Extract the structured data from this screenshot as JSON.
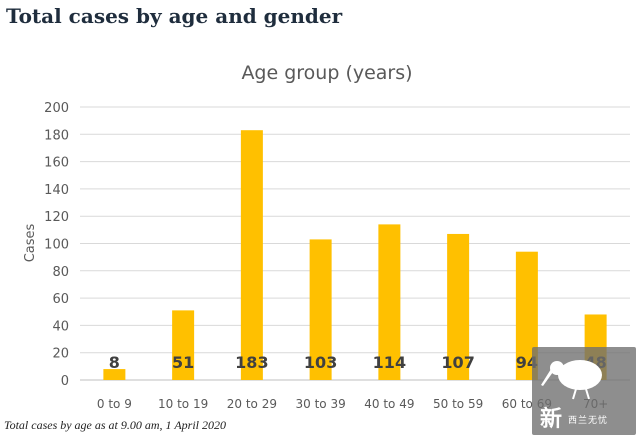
{
  "page": {
    "title": "Total cases by age and gender",
    "caption": "Total cases by age as at 9.00 am, 1 April 2020"
  },
  "watermark": {
    "char": "新",
    "text": "西兰无忧",
    "icon": "kiwi-bird-icon"
  },
  "colors": {
    "bar": "#ffc000",
    "grid": "#d9d9d9",
    "axis_text": "#595959",
    "data_label": "#404040"
  },
  "chart_data": {
    "type": "bar",
    "title": "Age group (years)",
    "ylabel": "Cases",
    "xlabel": "",
    "categories": [
      "0 to 9",
      "10 to 19",
      "20 to 29",
      "30 to 39",
      "40 to 49",
      "50 to 59",
      "60 to 69",
      "70+"
    ],
    "values": [
      8,
      51,
      183,
      103,
      114,
      107,
      94,
      48
    ],
    "data_labels": [
      "8",
      "51",
      "183",
      "103",
      "114",
      "107",
      "94",
      "48"
    ],
    "ylim": [
      0,
      200
    ],
    "yticks": [
      0,
      20,
      40,
      60,
      80,
      100,
      120,
      140,
      160,
      180,
      200
    ],
    "grid": true,
    "legend": "none"
  }
}
